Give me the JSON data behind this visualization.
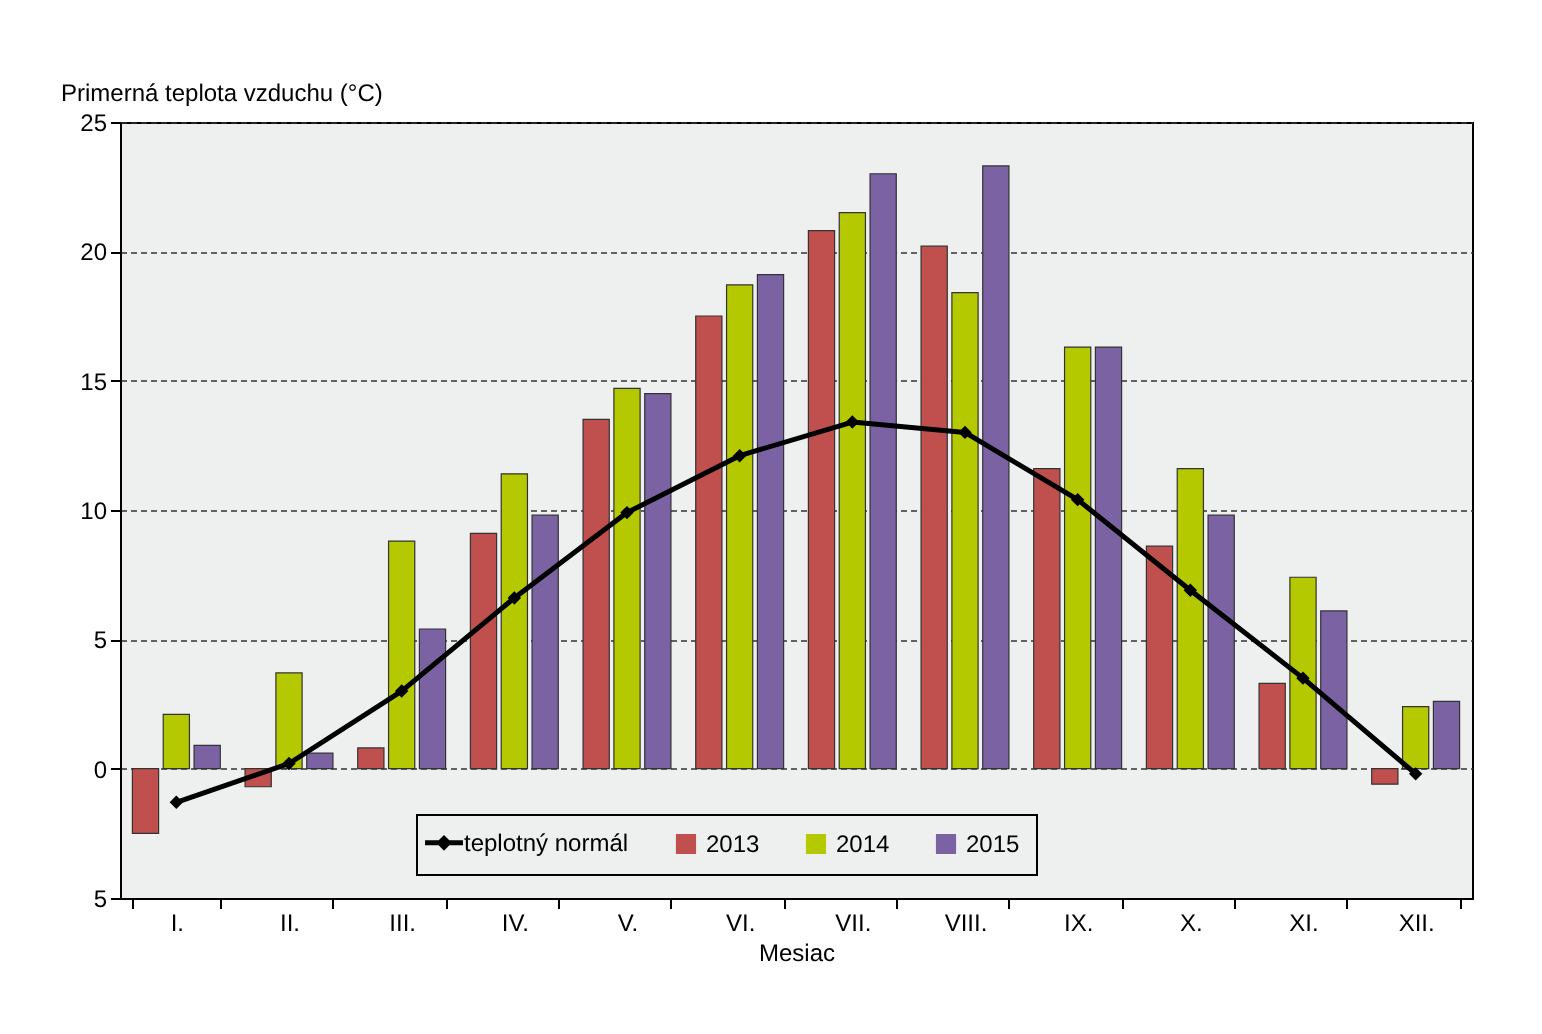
{
  "chart_data": {
    "type": "bar",
    "ylabel": "Primerná teplota vzduchu (°C)",
    "xlabel": "Mesiac",
    "categories": [
      "I.",
      "II.",
      "III.",
      "IV.",
      "V.",
      "VI.",
      "VII.",
      "VIII.",
      "IX.",
      "X.",
      "XI.",
      "XII."
    ],
    "series": [
      {
        "name": "teplotný normál",
        "type": "line",
        "color": "#000000",
        "marker": "diamond",
        "values": [
          -1.3,
          0.2,
          3.0,
          6.6,
          9.9,
          12.1,
          13.4,
          13.0,
          10.4,
          6.9,
          3.5,
          -0.2
        ]
      },
      {
        "name": "2013",
        "color": "#c0504d",
        "values": [
          -2.5,
          -0.7,
          0.8,
          9.1,
          13.5,
          17.5,
          20.8,
          20.2,
          11.6,
          8.6,
          3.3,
          -0.6
        ]
      },
      {
        "name": "2014",
        "color": "#b5c900",
        "values": [
          2.1,
          3.7,
          8.8,
          11.4,
          14.7,
          18.7,
          21.5,
          18.4,
          16.3,
          11.6,
          7.4,
          2.4
        ]
      },
      {
        "name": "2015",
        "color": "#7b62a3",
        "values": [
          0.9,
          0.6,
          5.4,
          9.8,
          14.5,
          19.1,
          23.0,
          23.3,
          16.3,
          9.8,
          6.1,
          2.6
        ]
      }
    ],
    "ylim": [
      -5,
      25
    ],
    "yticks": [
      {
        "value": -5,
        "label": "5"
      },
      0,
      5,
      10,
      15,
      20,
      25
    ],
    "grid": "y",
    "legend": "bottom"
  }
}
